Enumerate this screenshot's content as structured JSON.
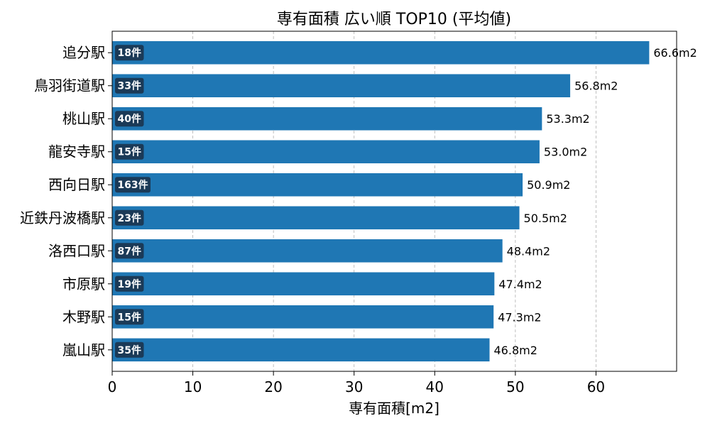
{
  "chart_data": {
    "type": "bar",
    "orientation": "horizontal",
    "title": "専有面積 広い順 TOP10 (平均値)",
    "xlabel": "専有面積[m2]",
    "ylabel": "",
    "xlim": [
      0,
      70
    ],
    "xticks": [
      0,
      10,
      20,
      30,
      40,
      50,
      60
    ],
    "grid": "x-dashed",
    "bar_color": "#1f77b4",
    "badge_color": "#1b3a57",
    "categories": [
      "追分駅",
      "鳥羽街道駅",
      "桃山駅",
      "龍安寺駅",
      "西向日駅",
      "近鉄丹波橋駅",
      "洛西口駅",
      "市原駅",
      "木野駅",
      "嵐山駅"
    ],
    "values": [
      66.6,
      56.8,
      53.3,
      53.0,
      50.9,
      50.5,
      48.4,
      47.4,
      47.3,
      46.8
    ],
    "value_labels": [
      "66.6m2",
      "56.8m2",
      "53.3m2",
      "53.0m2",
      "50.9m2",
      "50.5m2",
      "48.4m2",
      "47.4m2",
      "47.3m2",
      "46.8m2"
    ],
    "count_labels": [
      "18件",
      "33件",
      "40件",
      "15件",
      "163件",
      "23件",
      "87件",
      "19件",
      "15件",
      "35件"
    ]
  }
}
